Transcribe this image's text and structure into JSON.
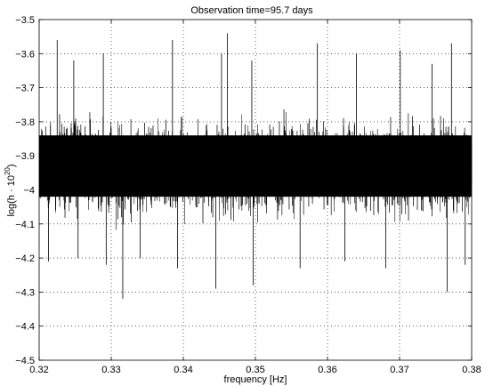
{
  "chart_data": {
    "type": "line",
    "title": "Observation time=95.7 days",
    "xlabel": "frequency [Hz]",
    "ylabel_prefix": "log(h · 10",
    "ylabel_exponent": "20",
    "ylabel_suffix": ")",
    "xlim": [
      0.32,
      0.38
    ],
    "ylim": [
      -4.5,
      -3.5
    ],
    "x_ticks": [
      0.32,
      0.33,
      0.34,
      0.35,
      0.36,
      0.37,
      0.38
    ],
    "x_tick_labels": [
      "0.32",
      "0.33",
      "0.34",
      "0.35",
      "0.36",
      "0.37",
      "0.38"
    ],
    "y_ticks": [
      -3.5,
      -3.6,
      -3.7,
      -3.8,
      -3.9,
      -4,
      -4.1,
      -4.2,
      -4.3,
      -4.4,
      -4.5
    ],
    "y_tick_labels": [
      "-3.5",
      "-3.6",
      "-3.7",
      "-3.8",
      "-3.9",
      "-4",
      "-4.1",
      "-4.2",
      "-4.3",
      "-4.4",
      "-4.5"
    ],
    "grid": true,
    "grid_style": "dotted",
    "line_color": "#000000",
    "series": [
      {
        "band_center": -3.93,
        "band_core_halfwidth": 0.09,
        "band_outer_halfwidth": 0.2,
        "x": [
          0.32,
          0.325,
          0.33,
          0.335,
          0.34,
          0.345,
          0.35,
          0.355,
          0.36,
          0.365,
          0.37,
          0.375,
          0.38
        ],
        "upper_envelope": [
          -3.75,
          -3.72,
          -3.74,
          -3.73,
          -3.75,
          -3.72,
          -3.74,
          -3.73,
          -3.73,
          -3.72,
          -3.74,
          -3.73,
          -3.75
        ],
        "lower_envelope": [
          -4.12,
          -4.14,
          -4.15,
          -4.14,
          -4.13,
          -4.15,
          -4.14,
          -4.13,
          -4.12,
          -4.14,
          -4.15,
          -4.15,
          -4.12
        ],
        "peaks": [
          {
            "x": 0.3225,
            "y": -3.56
          },
          {
            "x": 0.3248,
            "y": -3.62
          },
          {
            "x": 0.3289,
            "y": -3.6
          },
          {
            "x": 0.3385,
            "y": -3.56
          },
          {
            "x": 0.3453,
            "y": -3.6
          },
          {
            "x": 0.3461,
            "y": -3.54
          },
          {
            "x": 0.3495,
            "y": -3.62
          },
          {
            "x": 0.3586,
            "y": -3.57
          },
          {
            "x": 0.364,
            "y": -3.6
          },
          {
            "x": 0.3701,
            "y": -3.59
          },
          {
            "x": 0.3745,
            "y": -3.63
          },
          {
            "x": 0.3772,
            "y": -3.57
          }
        ],
        "dips": [
          {
            "x": 0.3213,
            "y": -4.21
          },
          {
            "x": 0.3254,
            "y": -4.2
          },
          {
            "x": 0.3293,
            "y": -4.22
          },
          {
            "x": 0.3316,
            "y": -4.32
          },
          {
            "x": 0.334,
            "y": -4.2
          },
          {
            "x": 0.3392,
            "y": -4.23
          },
          {
            "x": 0.3445,
            "y": -4.29
          },
          {
            "x": 0.3497,
            "y": -4.28
          },
          {
            "x": 0.3562,
            "y": -4.23
          },
          {
            "x": 0.3624,
            "y": -4.21
          },
          {
            "x": 0.3681,
            "y": -4.23
          },
          {
            "x": 0.3766,
            "y": -4.3
          },
          {
            "x": 0.3791,
            "y": -4.22
          }
        ]
      }
    ]
  }
}
